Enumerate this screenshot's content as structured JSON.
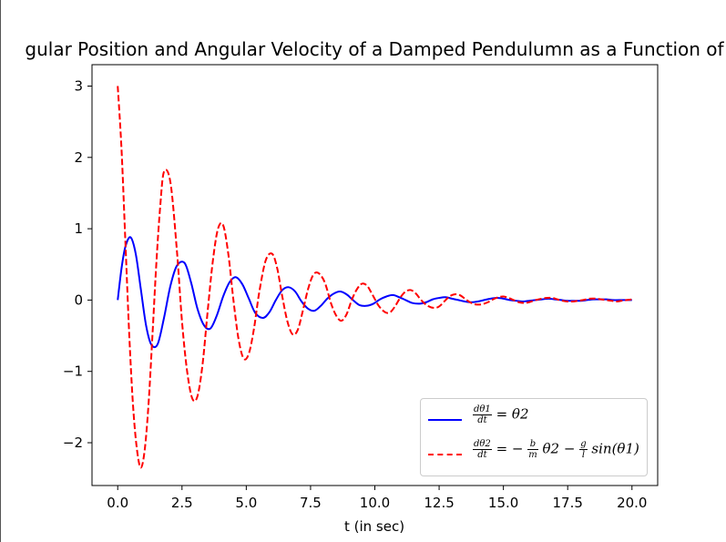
{
  "chart_data": {
    "type": "line",
    "title": "gular Position and Angular Velocity of a Damped Pendulumn as a Function of",
    "xlabel": "t (in sec)",
    "ylabel": "",
    "xlim": [
      -1,
      21
    ],
    "ylim": [
      -2.6,
      3.3
    ],
    "xticks": [
      0,
      2.5,
      5,
      7.5,
      10,
      12.5,
      15,
      17.5,
      20
    ],
    "xtick_labels": [
      "0.0",
      "2.5",
      "5.0",
      "7.5",
      "10.0",
      "12.5",
      "15.0",
      "17.5",
      "20.0"
    ],
    "yticks": [
      -2,
      -1,
      0,
      1,
      2,
      3
    ],
    "ytick_labels": [
      "−2",
      "−1",
      "0",
      "1",
      "2",
      "3"
    ],
    "grid": false,
    "legend_position": "lower-right",
    "series": [
      {
        "name": "dθ1/dt = θ2",
        "color": "#0000ff",
        "style": "solid",
        "x": [
          0.0,
          0.15,
          0.3,
          0.5,
          0.7,
          0.9,
          1.1,
          1.3,
          1.55,
          1.8,
          2.05,
          2.3,
          2.6,
          2.85,
          3.1,
          3.35,
          3.6,
          3.85,
          4.1,
          4.35,
          4.6,
          4.85,
          5.1,
          5.35,
          5.65,
          5.9,
          6.15,
          6.4,
          6.65,
          6.9,
          7.15,
          7.4,
          7.65,
          7.9,
          8.15,
          8.4,
          8.65,
          8.9,
          9.15,
          9.4,
          9.7,
          9.95,
          10.2,
          10.45,
          10.7,
          10.95,
          11.2,
          11.45,
          11.75,
          12.0,
          12.25,
          12.5,
          12.75,
          13.0,
          13.25,
          13.5,
          13.75,
          14.0,
          14.25,
          14.5,
          14.75,
          15.0,
          15.25,
          15.5,
          15.75,
          16.0,
          16.25,
          16.5,
          16.75,
          17.0,
          17.25,
          17.5,
          17.75,
          18.0,
          18.25,
          18.5,
          18.75,
          19.0,
          19.25,
          19.5,
          19.75,
          20.0
        ],
        "y": [
          0.0,
          0.45,
          0.75,
          0.88,
          0.65,
          0.15,
          -0.35,
          -0.62,
          -0.62,
          -0.25,
          0.2,
          0.48,
          0.52,
          0.25,
          -0.12,
          -0.35,
          -0.4,
          -0.22,
          0.05,
          0.25,
          0.32,
          0.22,
          0.02,
          -0.18,
          -0.25,
          -0.17,
          0.0,
          0.14,
          0.18,
          0.12,
          -0.02,
          -0.12,
          -0.15,
          -0.08,
          0.02,
          0.09,
          0.12,
          0.08,
          0.0,
          -0.07,
          -0.08,
          -0.05,
          0.01,
          0.05,
          0.07,
          0.04,
          0.0,
          -0.04,
          -0.05,
          -0.03,
          0.01,
          0.03,
          0.04,
          0.02,
          0.0,
          -0.02,
          -0.03,
          -0.02,
          0.0,
          0.02,
          0.03,
          0.02,
          0.0,
          -0.01,
          -0.02,
          -0.01,
          0.0,
          0.01,
          0.02,
          0.01,
          0.0,
          -0.01,
          -0.01,
          -0.01,
          0.0,
          0.01,
          0.01,
          0.01,
          0.0,
          0.0,
          0.0,
          0.0
        ]
      },
      {
        "name": "dθ2/dt = −(b/m)θ2 − (g/l)sin(θ1)",
        "color": "#ff0000",
        "style": "dashed",
        "x": [
          0.0,
          0.15,
          0.3,
          0.45,
          0.6,
          0.75,
          0.9,
          1.05,
          1.2,
          1.35,
          1.5,
          1.65,
          1.8,
          2.05,
          2.3,
          2.5,
          2.7,
          2.9,
          3.1,
          3.3,
          3.5,
          3.7,
          3.9,
          4.1,
          4.3,
          4.5,
          4.7,
          4.9,
          5.1,
          5.3,
          5.5,
          5.75,
          6.0,
          6.2,
          6.4,
          6.6,
          6.8,
          7.0,
          7.2,
          7.4,
          7.6,
          7.8,
          8.05,
          8.3,
          8.5,
          8.7,
          8.9,
          9.1,
          9.3,
          9.5,
          9.7,
          9.9,
          10.15,
          10.4,
          10.6,
          10.8,
          11.0,
          11.2,
          11.4,
          11.6,
          11.8,
          12.05,
          12.3,
          12.5,
          12.7,
          12.9,
          13.1,
          13.3,
          13.5,
          13.7,
          13.9,
          14.15,
          14.4,
          14.6,
          14.8,
          15.0,
          15.2,
          15.4,
          15.6,
          15.8,
          16.0,
          16.25,
          16.5,
          16.7,
          16.9,
          17.1,
          17.3,
          17.5,
          17.7,
          17.9,
          18.1,
          18.35,
          18.6,
          18.8,
          19.0,
          19.2,
          19.4,
          19.6,
          19.8,
          20.0
        ],
        "y": [
          3.0,
          2.1,
          0.8,
          -0.5,
          -1.5,
          -2.1,
          -2.35,
          -2.1,
          -1.45,
          -0.5,
          0.5,
          1.3,
          1.8,
          1.65,
          0.7,
          -0.3,
          -1.0,
          -1.38,
          -1.35,
          -0.9,
          -0.15,
          0.55,
          1.0,
          1.05,
          0.65,
          0.0,
          -0.55,
          -0.82,
          -0.75,
          -0.4,
          0.1,
          0.55,
          0.65,
          0.45,
          0.05,
          -0.3,
          -0.48,
          -0.42,
          -0.15,
          0.15,
          0.35,
          0.38,
          0.25,
          -0.05,
          -0.22,
          -0.29,
          -0.2,
          0.0,
          0.15,
          0.23,
          0.2,
          0.08,
          -0.08,
          -0.17,
          -0.17,
          -0.08,
          0.04,
          0.12,
          0.14,
          0.09,
          0.0,
          -0.08,
          -0.11,
          -0.09,
          -0.02,
          0.05,
          0.08,
          0.07,
          0.02,
          -0.03,
          -0.06,
          -0.06,
          -0.03,
          0.01,
          0.04,
          0.05,
          0.03,
          0.0,
          -0.03,
          -0.04,
          -0.03,
          0.0,
          0.02,
          0.03,
          0.03,
          0.01,
          -0.01,
          -0.02,
          -0.02,
          -0.01,
          0.0,
          0.02,
          0.02,
          0.01,
          0.0,
          -0.01,
          -0.02,
          -0.01,
          0.0,
          0.01
        ]
      }
    ]
  },
  "legend": {
    "entry1": {
      "num": "dθ1",
      "den": "dt",
      "rhs": "= θ2"
    },
    "entry2": {
      "num": "dθ2",
      "den": "dt",
      "rhs1": "= −",
      "b": "b",
      "m": "m",
      "theta2": "θ2 −",
      "g": "g",
      "l": "l",
      "rhs2": "sin(θ1)"
    }
  }
}
